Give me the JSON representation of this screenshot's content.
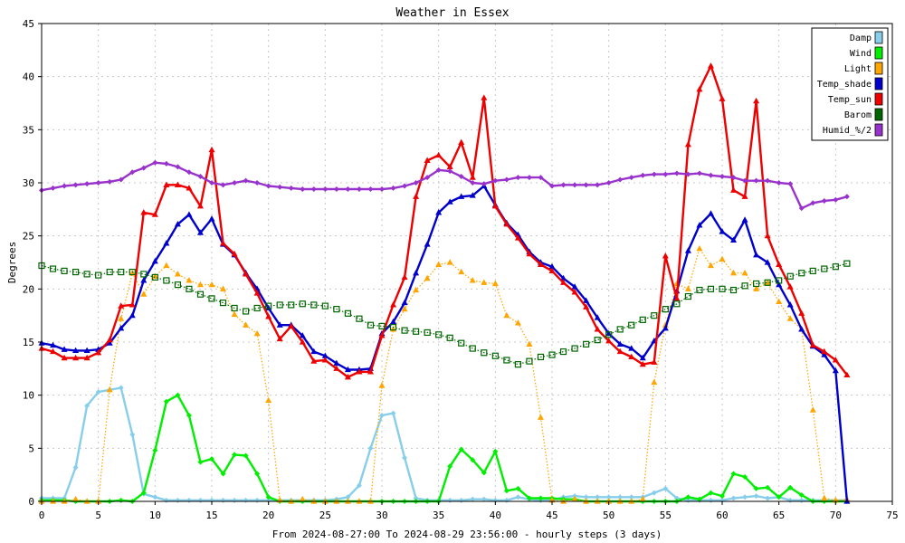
{
  "chart_data": {
    "type": "line",
    "title": "Weather in Essex",
    "xlabel": "From 2024-08-27:00 To 2024-08-29 23:56:00 - hourly steps (3 days)",
    "ylabel": "Degrees",
    "xlim": [
      0,
      75
    ],
    "ylim": [
      0,
      45
    ],
    "x_ticks": [
      0,
      5,
      10,
      15,
      20,
      25,
      30,
      35,
      40,
      45,
      50,
      55,
      60,
      65,
      70,
      75
    ],
    "y_ticks": [
      0,
      5,
      10,
      15,
      20,
      25,
      30,
      35,
      40,
      45
    ],
    "grid": true,
    "legend_position": "top-right",
    "series": [
      {
        "name": "Damp",
        "color": "#87ceeb",
        "style": "solid",
        "marker": "diamond",
        "values": [
          0.3,
          0.3,
          0.3,
          3.2,
          9,
          10.3,
          10.5,
          10.7,
          6.3,
          0.7,
          0.4,
          0.1,
          0.1,
          0.1,
          0.1,
          0.1,
          0.1,
          0.1,
          0.1,
          0.1,
          0.1,
          0.1,
          0.1,
          0.1,
          0.1,
          0.1,
          0.2,
          0.4,
          1.5,
          5,
          8.1,
          8.3,
          4.1,
          0.3,
          0.1,
          0.1,
          0.1,
          0.1,
          0.2,
          0.2,
          0.1,
          0.1,
          0.4,
          0.2,
          0.1,
          0.1,
          0.4,
          0.5,
          0.4,
          0.4,
          0.4,
          0.4,
          0.4,
          0.4,
          0.8,
          1.2,
          0.3,
          0.1,
          0.1,
          0.1,
          0.1,
          0.3,
          0.4,
          0.5,
          0.3,
          0.4,
          0.1,
          0.1,
          0.1,
          0.1,
          0.1,
          0.1
        ]
      },
      {
        "name": "Wind",
        "color": "#00ee00",
        "style": "solid",
        "marker": "diamond",
        "values": [
          0.1,
          0.1,
          0.1,
          0,
          0,
          0,
          0,
          0.1,
          0,
          0.8,
          4.8,
          9.4,
          10,
          8.1,
          3.7,
          4,
          2.6,
          4.4,
          4.3,
          2.6,
          0.4,
          0,
          0,
          0,
          0,
          0,
          0,
          0,
          0,
          0,
          0,
          0,
          0,
          0,
          0,
          0,
          3.3,
          4.9,
          3.9,
          2.7,
          4.7,
          1,
          1.2,
          0.3,
          0.3,
          0.3,
          0.2,
          0.2,
          0,
          0,
          0,
          0,
          0,
          0,
          0,
          0,
          0,
          0.4,
          0.2,
          0.8,
          0.5,
          2.6,
          2.3,
          1.2,
          1.3,
          0.4,
          1.3,
          0.6,
          0,
          0,
          0,
          0
        ]
      },
      {
        "name": "Light",
        "color": "#ffa500",
        "style": "dotted",
        "marker": "triangle",
        "values": [
          0,
          0,
          0,
          0.2,
          0,
          0,
          10.5,
          17.2,
          21.5,
          19.5,
          21.2,
          22.2,
          21.4,
          20.8,
          20.4,
          20.4,
          20,
          17.6,
          16.6,
          15.8,
          9.5,
          0.1,
          0,
          0.2,
          0,
          0,
          0,
          0,
          0,
          0,
          10.9,
          16.2,
          18.1,
          19.9,
          21,
          22.3,
          22.5,
          21.6,
          20.8,
          20.6,
          20.5,
          17.5,
          16.8,
          14.8,
          7.9,
          0.1,
          0,
          0.2,
          0,
          0,
          0,
          0,
          0,
          0.2,
          11.2,
          16.6,
          20.5,
          20,
          23.8,
          22.2,
          22.8,
          21.5,
          21.5,
          20,
          20.6,
          18.8,
          17.2,
          16.2,
          8.6,
          0.3,
          0.1,
          0.2
        ]
      },
      {
        "name": "Temp_shade",
        "color": "#0000cc",
        "style": "solid",
        "marker": "triangle",
        "values": [
          14.9,
          14.7,
          14.3,
          14.2,
          14.2,
          14.3,
          14.9,
          16.3,
          17.5,
          20.8,
          22.6,
          24.3,
          26.1,
          27,
          25.3,
          26.6,
          24.2,
          23.2,
          21.5,
          20,
          18.2,
          16.6,
          16.6,
          15.6,
          14.1,
          13.7,
          13,
          12.4,
          12.4,
          12.5,
          15.8,
          16.9,
          18.7,
          21.5,
          24.2,
          27.2,
          28.2,
          28.7,
          28.8,
          29.7,
          27.9,
          26.2,
          25.1,
          23.5,
          22.5,
          22.1,
          21,
          20.2,
          18.9,
          17.3,
          15.8,
          14.8,
          14.4,
          13.5,
          15.1,
          16.3,
          19.8,
          23.6,
          26,
          27.1,
          25.4,
          24.6,
          26.5,
          23.2,
          22.5,
          20.4,
          18.5,
          16.2,
          14.6,
          13.8,
          12.3,
          0
        ]
      },
      {
        "name": "Temp_sun",
        "color": "#ee0000",
        "style": "solid",
        "marker": "triangle",
        "values": [
          14.4,
          14.1,
          13.5,
          13.5,
          13.5,
          14,
          15.2,
          18.4,
          18.5,
          27.2,
          27,
          29.8,
          29.8,
          29.5,
          27.8,
          33.1,
          24.3,
          23.3,
          21.4,
          19.6,
          17.4,
          15.3,
          16.5,
          15,
          13.2,
          13.3,
          12.5,
          11.7,
          12.2,
          12.2,
          15.6,
          18.5,
          21.1,
          28.7,
          32.1,
          32.6,
          31.5,
          33.8,
          30.5,
          38,
          27.8,
          26.1,
          24.8,
          23.3,
          22.3,
          21.7,
          20.6,
          19.7,
          18.3,
          16.2,
          15.1,
          14.1,
          13.6,
          12.9,
          13.1,
          23.1,
          19.1,
          33.6,
          38.8,
          41,
          37.9,
          29.3,
          28.7,
          37.7,
          25,
          22.3,
          20.2,
          17.7,
          14.7,
          14.1,
          13.3,
          11.9
        ]
      },
      {
        "name": "Barom",
        "color": "#006600",
        "style": "dotted",
        "marker": "square",
        "values": [
          22.2,
          21.9,
          21.7,
          21.6,
          21.4,
          21.3,
          21.6,
          21.6,
          21.6,
          21.4,
          21.1,
          20.8,
          20.4,
          20,
          19.5,
          19.1,
          18.7,
          18.2,
          17.9,
          18.2,
          18.4,
          18.5,
          18.5,
          18.6,
          18.5,
          18.4,
          18.1,
          17.7,
          17.2,
          16.6,
          16.5,
          16.4,
          16.1,
          16,
          15.9,
          15.7,
          15.4,
          14.9,
          14.4,
          14,
          13.7,
          13.3,
          12.9,
          13.2,
          13.6,
          13.8,
          14.1,
          14.4,
          14.8,
          15.2,
          15.7,
          16.2,
          16.6,
          17.1,
          17.5,
          18.1,
          18.6,
          19.3,
          19.9,
          20,
          20,
          19.9,
          20.3,
          20.5,
          20.6,
          20.8,
          21.2,
          21.5,
          21.7,
          21.9,
          22.1,
          22.4
        ]
      },
      {
        "name": "Humid_%/2",
        "color": "#9932cc",
        "style": "solid",
        "marker": "diamond",
        "values": [
          29.3,
          29.5,
          29.7,
          29.8,
          29.9,
          30,
          30.1,
          30.3,
          31,
          31.4,
          31.9,
          31.8,
          31.5,
          31,
          30.6,
          30,
          29.8,
          30,
          30.2,
          30,
          29.7,
          29.6,
          29.5,
          29.4,
          29.4,
          29.4,
          29.4,
          29.4,
          29.4,
          29.4,
          29.4,
          29.5,
          29.7,
          30,
          30.5,
          31.2,
          31.1,
          30.6,
          30,
          29.9,
          30.2,
          30.3,
          30.5,
          30.5,
          30.5,
          29.7,
          29.8,
          29.8,
          29.8,
          29.8,
          30,
          30.3,
          30.5,
          30.7,
          30.8,
          30.8,
          30.9,
          30.8,
          30.9,
          30.7,
          30.6,
          30.5,
          30.2,
          30.2,
          30.2,
          30,
          29.9,
          27.6,
          28.1,
          28.3,
          28.4,
          28.7
        ]
      }
    ]
  }
}
